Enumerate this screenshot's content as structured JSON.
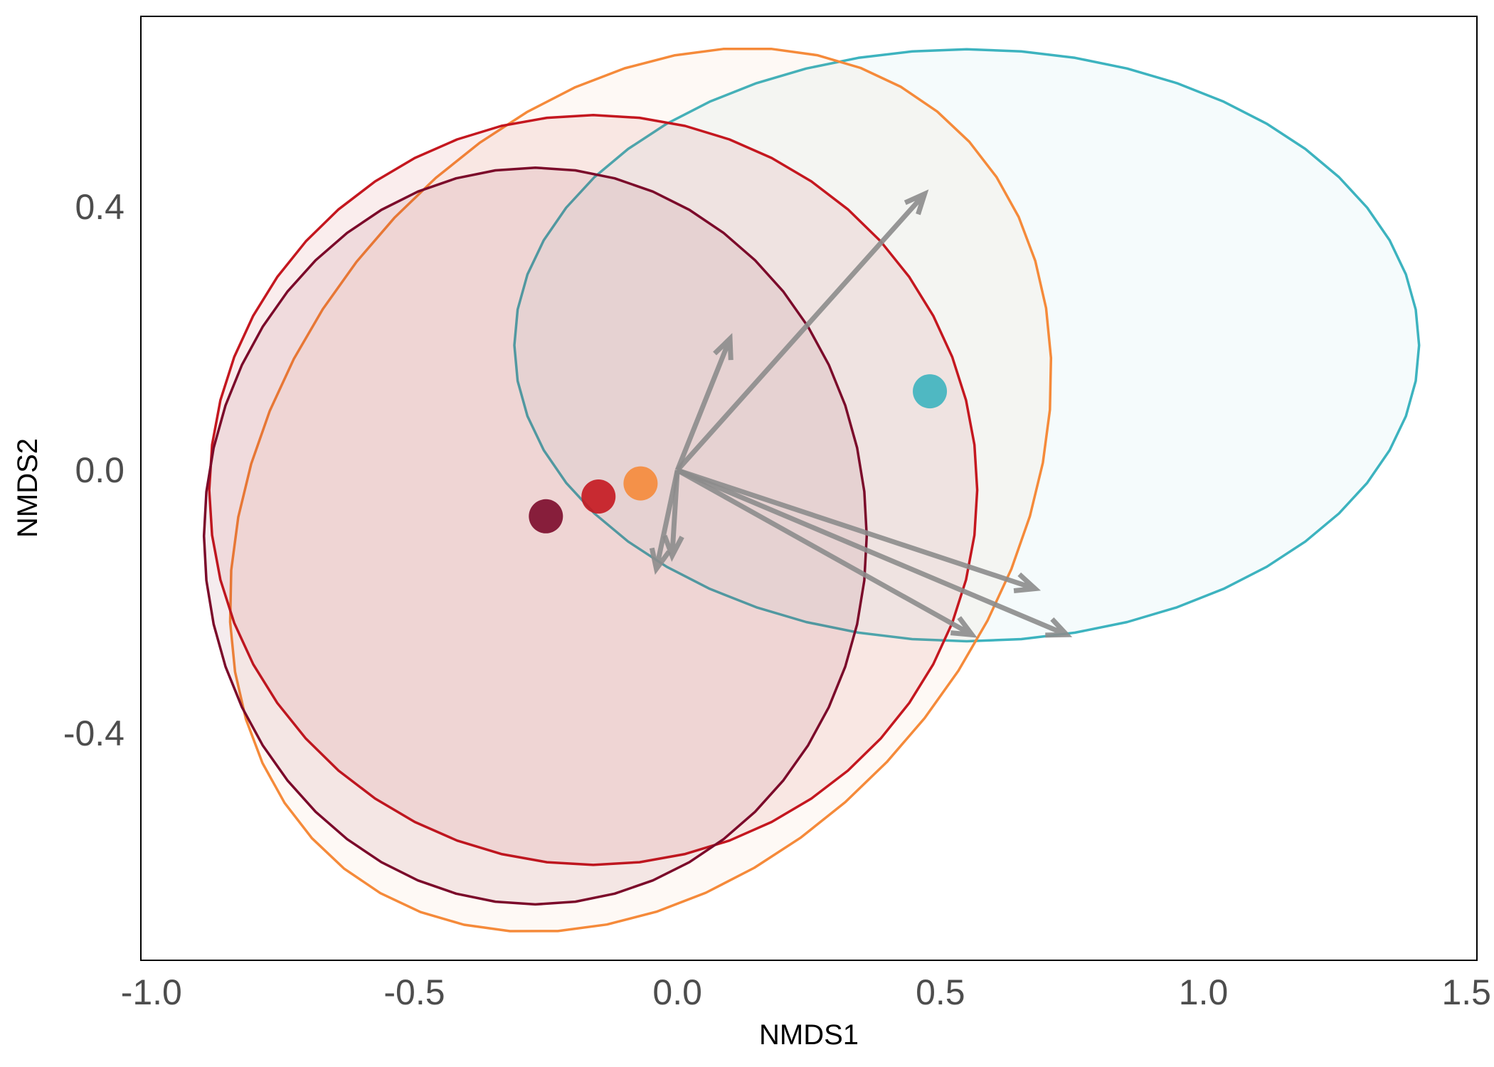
{
  "chart_data": {
    "type": "scatter",
    "title": "",
    "xlabel": "NMDS1",
    "ylabel": "NMDS2",
    "xlim": [
      -1.02,
      1.52
    ],
    "ylim": [
      -0.745,
      0.69
    ],
    "x_ticks": [
      -1.0,
      -0.5,
      0.0,
      0.5,
      1.0,
      1.5
    ],
    "x_tick_labels": [
      "-1.0",
      "-0.5",
      "0.0",
      "0.5",
      "1.0",
      "1.5"
    ],
    "y_ticks": [
      -0.4,
      0.0,
      0.4
    ],
    "y_tick_labels": [
      "-0.4",
      "0.0",
      "0.4"
    ],
    "grid": false,
    "legend": "none",
    "groups": [
      {
        "color": "#3db3bf",
        "centroid": [
          0.48,
          0.12
        ],
        "ellipse": {
          "cx": 0.55,
          "cy": 0.19,
          "rx": 0.86,
          "ry": 0.45
        },
        "fill_opacity": 0.05
      },
      {
        "color": "#f58a3a",
        "centroid": [
          -0.07,
          -0.02
        ],
        "ellipse": {
          "cx": -0.07,
          "cy": -0.03,
          "rx": 0.83,
          "ry": 0.61,
          "angle": 30
        },
        "fill_opacity": 0.05
      },
      {
        "color": "#c4171f",
        "centroid": [
          -0.15,
          -0.04
        ],
        "ellipse": {
          "cx": -0.16,
          "cy": -0.03,
          "rx": 0.73,
          "ry": 0.57
        },
        "fill_opacity": 0.08
      },
      {
        "color": "#7b0a2a",
        "centroid": [
          -0.25,
          -0.07
        ],
        "ellipse": {
          "cx": -0.27,
          "cy": -0.1,
          "rx": 0.63,
          "ry": 0.56
        },
        "fill_opacity": 0.08
      }
    ],
    "vectors": {
      "color": "#8c8c8c",
      "origin": [
        0.0,
        0.0
      ],
      "endpoints": [
        [
          0.47,
          0.42
        ],
        [
          0.1,
          0.2
        ],
        [
          -0.04,
          -0.15
        ],
        [
          -0.01,
          -0.13
        ],
        [
          0.68,
          -0.18
        ],
        [
          0.56,
          -0.25
        ],
        [
          0.74,
          -0.25
        ]
      ]
    }
  }
}
